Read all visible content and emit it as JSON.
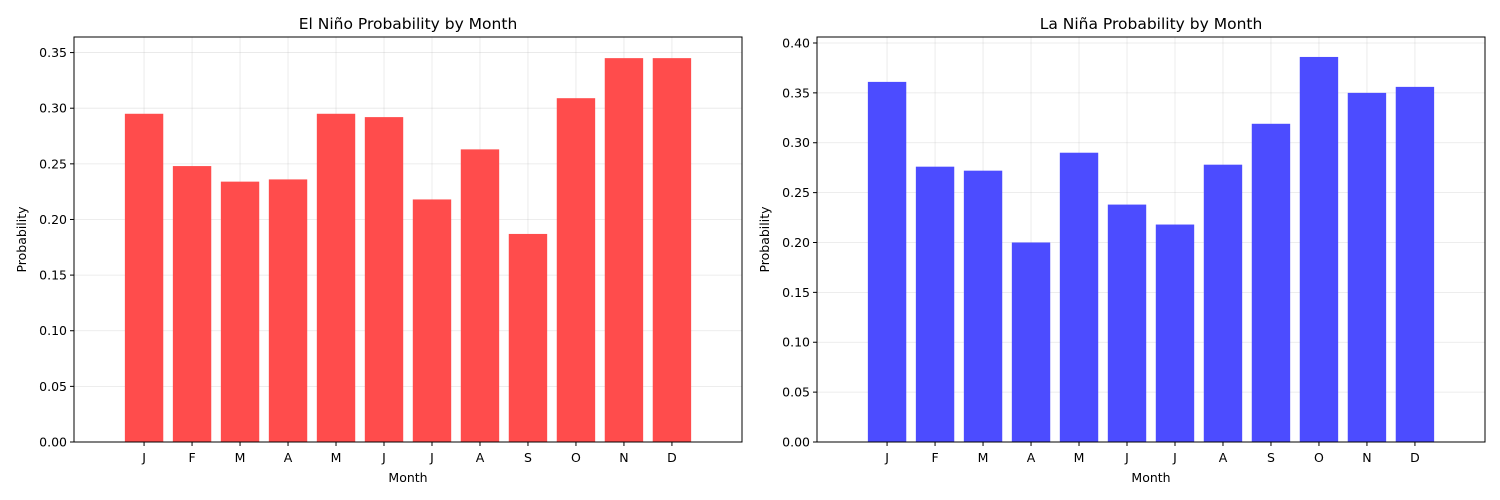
{
  "chart_data": [
    {
      "type": "bar",
      "title": "El Niño Probability by Month",
      "xlabel": "Month",
      "ylabel": "Probability",
      "categories": [
        "J",
        "F",
        "M",
        "A",
        "M",
        "J",
        "J",
        "A",
        "S",
        "O",
        "N",
        "D"
      ],
      "values": [
        0.295,
        0.248,
        0.234,
        0.236,
        0.295,
        0.292,
        0.218,
        0.263,
        0.187,
        0.309,
        0.345,
        0.345
      ],
      "ylim": [
        0,
        0.364
      ],
      "yticks": [
        "0.00",
        "0.05",
        "0.10",
        "0.15",
        "0.20",
        "0.25",
        "0.30",
        "0.35"
      ],
      "color": "#ff4c4c",
      "grid": true
    },
    {
      "type": "bar",
      "title": "La Niña Probability by Month",
      "xlabel": "Month",
      "ylabel": "Probability",
      "categories": [
        "J",
        "F",
        "M",
        "A",
        "M",
        "J",
        "J",
        "A",
        "S",
        "O",
        "N",
        "D"
      ],
      "values": [
        0.361,
        0.276,
        0.272,
        0.2,
        0.29,
        0.238,
        0.218,
        0.278,
        0.319,
        0.386,
        0.35,
        0.356
      ],
      "ylim": [
        0,
        0.406
      ],
      "yticks": [
        "0.00",
        "0.05",
        "0.10",
        "0.15",
        "0.20",
        "0.25",
        "0.30",
        "0.35",
        "0.40"
      ],
      "color": "#4c4cff",
      "grid": true
    }
  ]
}
